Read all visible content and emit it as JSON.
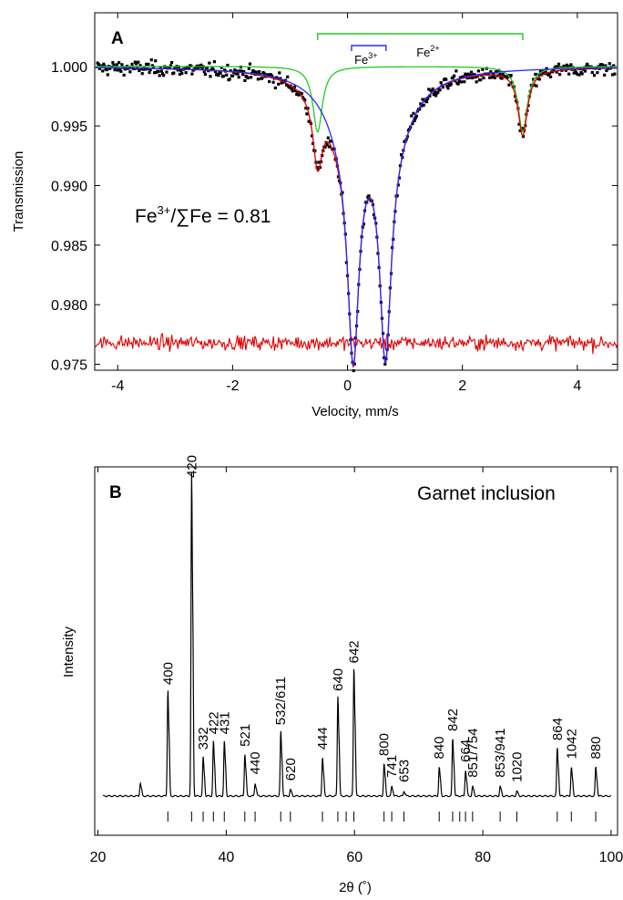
{
  "chart_data": [
    {
      "panel": "A",
      "type": "scatter",
      "xlabel": "Velocity, mm/s",
      "ylabel": "Transmission",
      "xlim": [
        -4.4,
        4.7
      ],
      "ylim": [
        0.9745,
        1.0045
      ],
      "xticks": [
        -4,
        -2,
        0,
        2,
        4
      ],
      "xtick_labels": [
        "-4",
        "-2",
        "0",
        "2",
        "4"
      ],
      "yticks": [
        0.975,
        0.98,
        0.985,
        0.99,
        0.995,
        1.0
      ],
      "ytick_labels": [
        "0.975",
        "0.980",
        "0.985",
        "0.990",
        "0.995",
        "1.000"
      ],
      "annotation": {
        "prefix": "Fe",
        "sup": "3+",
        "suffix": "/∑Fe = 0.81"
      },
      "component_labels": [
        {
          "text": "Fe",
          "sup": "3+",
          "bracket": [
            0.07,
            0.67
          ],
          "color": "#2a2aff"
        },
        {
          "text": "Fe",
          "sup": "2+",
          "bracket": [
            -0.52,
            3.05
          ],
          "color": "#22cc22"
        }
      ],
      "fe3_doublet": {
        "centers": [
          0.1,
          0.66
        ],
        "depths": [
          0.0185,
          0.0183
        ],
        "hwhm": 0.12,
        "background_centers": [
          0.0,
          0.75
        ],
        "background_depth": 0.0045,
        "background_hwhm": 0.45
      },
      "fe2_doublet": {
        "centers": [
          -0.52,
          3.05
        ],
        "depth": 0.0055,
        "hwhm": 0.1
      },
      "residual_baseline": 0.9768,
      "series": [
        {
          "name": "Measured",
          "color": "#000000",
          "style": "points"
        },
        {
          "name": "Fe3+ component",
          "color": "#2a2aff",
          "style": "line"
        },
        {
          "name": "Fe2+ component",
          "color": "#22cc22",
          "style": "line"
        },
        {
          "name": "Total fit",
          "color": "#e00000",
          "style": "line"
        },
        {
          "name": "Residual",
          "color": "#e00000",
          "style": "line"
        }
      ]
    },
    {
      "panel": "B",
      "type": "line",
      "xlabel": "2θ (˚)",
      "ylabel": "Intensity",
      "xlim": [
        19.5,
        101
      ],
      "xticks": [
        20,
        40,
        60,
        80,
        100
      ],
      "xtick_labels": [
        "20",
        "40",
        "60",
        "80",
        "100"
      ],
      "annotation": "Garnet inclusion",
      "baseline": 0,
      "peaks": [
        {
          "x": 26.6,
          "y": 0.04,
          "label": ""
        },
        {
          "x": 30.9,
          "y": 0.33,
          "label": "400"
        },
        {
          "x": 34.6,
          "y": 1.0,
          "label": "420"
        },
        {
          "x": 36.4,
          "y": 0.12,
          "label": "332"
        },
        {
          "x": 38.0,
          "y": 0.17,
          "label": "422"
        },
        {
          "x": 39.7,
          "y": 0.17,
          "label": "431"
        },
        {
          "x": 42.9,
          "y": 0.13,
          "label": "521"
        },
        {
          "x": 44.5,
          "y": 0.04,
          "label": "440"
        },
        {
          "x": 48.5,
          "y": 0.2,
          "label": "532/611"
        },
        {
          "x": 50.0,
          "y": 0.02,
          "label": "620"
        },
        {
          "x": 55.0,
          "y": 0.12,
          "label": "444"
        },
        {
          "x": 57.4,
          "y": 0.31,
          "label": "640"
        },
        {
          "x": 59.9,
          "y": 0.4,
          "label": "642"
        },
        {
          "x": 64.6,
          "y": 0.1,
          "label": "800"
        },
        {
          "x": 65.8,
          "y": 0.03,
          "label": "741"
        },
        {
          "x": 67.7,
          "y": 0.015,
          "label": "653"
        },
        {
          "x": 73.2,
          "y": 0.09,
          "label": "840"
        },
        {
          "x": 75.3,
          "y": 0.18,
          "label": "842"
        },
        {
          "x": 77.3,
          "y": 0.08,
          "label": "664"
        },
        {
          "x": 78.4,
          "y": 0.03,
          "label": "851/754"
        },
        {
          "x": 82.7,
          "y": 0.03,
          "label": "853/941"
        },
        {
          "x": 85.3,
          "y": 0.015,
          "label": "1020"
        },
        {
          "x": 91.6,
          "y": 0.15,
          "label": "864"
        },
        {
          "x": 93.8,
          "y": 0.09,
          "label": "1042"
        },
        {
          "x": 97.6,
          "y": 0.09,
          "label": "880"
        }
      ],
      "reference_ticks": [
        30.9,
        34.6,
        36.4,
        38.0,
        39.7,
        42.9,
        44.5,
        48.5,
        50.0,
        55.0,
        57.4,
        58.7,
        59.9,
        64.6,
        65.8,
        67.7,
        73.2,
        75.3,
        76.4,
        77.3,
        78.4,
        82.7,
        85.3,
        91.6,
        93.8,
        97.6
      ]
    }
  ]
}
